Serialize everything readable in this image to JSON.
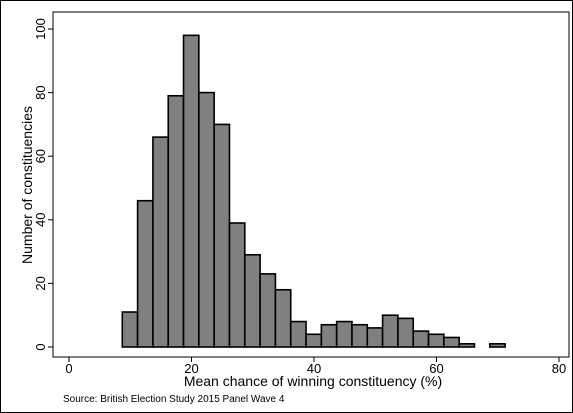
{
  "chart_data": {
    "type": "bar",
    "xlabel": "Mean chance of winning constituency (%)",
    "ylabel": "Number of constituencies",
    "xlim": [
      0,
      80
    ],
    "ylim": [
      0,
      100
    ],
    "x_ticks": [
      0,
      20,
      40,
      60,
      80
    ],
    "y_ticks": [
      0,
      20,
      40,
      60,
      80,
      100
    ],
    "grid": false,
    "bin_width": 2.5,
    "bins": [
      {
        "start": 8.7,
        "value": 11
      },
      {
        "start": 11.2,
        "value": 46
      },
      {
        "start": 13.7,
        "value": 66
      },
      {
        "start": 16.2,
        "value": 79
      },
      {
        "start": 18.7,
        "value": 98
      },
      {
        "start": 21.2,
        "value": 80
      },
      {
        "start": 23.7,
        "value": 70
      },
      {
        "start": 26.2,
        "value": 39
      },
      {
        "start": 28.7,
        "value": 29
      },
      {
        "start": 31.2,
        "value": 23
      },
      {
        "start": 33.7,
        "value": 18
      },
      {
        "start": 36.2,
        "value": 8
      },
      {
        "start": 38.7,
        "value": 4
      },
      {
        "start": 41.2,
        "value": 7
      },
      {
        "start": 43.7,
        "value": 8
      },
      {
        "start": 46.2,
        "value": 7
      },
      {
        "start": 48.7,
        "value": 6
      },
      {
        "start": 51.2,
        "value": 10
      },
      {
        "start": 53.7,
        "value": 9
      },
      {
        "start": 56.2,
        "value": 5
      },
      {
        "start": 58.7,
        "value": 4
      },
      {
        "start": 61.2,
        "value": 3
      },
      {
        "start": 63.7,
        "value": 1
      },
      {
        "start": 66.2,
        "value": 0
      },
      {
        "start": 68.7,
        "value": 1
      }
    ],
    "bar_color": "#808080",
    "bar_edge_color": "#000000",
    "source": "Source: British Election Study 2015 Panel Wave 4"
  }
}
